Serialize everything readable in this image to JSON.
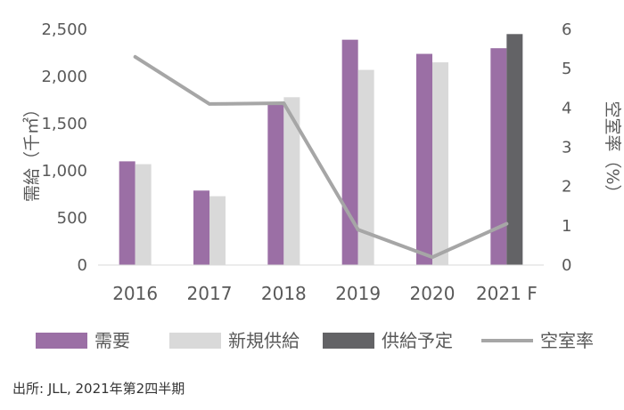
{
  "chart_data": {
    "type": "bar",
    "categories": [
      "2016",
      "2017",
      "2018",
      "2019",
      "2020",
      "2021 F"
    ],
    "series": [
      {
        "name": "需要",
        "type": "bar",
        "axis": "left",
        "color": "#9B6FA5",
        "values": [
          1100,
          790,
          1720,
          2390,
          2240,
          2300
        ]
      },
      {
        "name": "新規供給",
        "type": "bar",
        "axis": "left",
        "color": "#D9D9D9",
        "values": [
          1070,
          730,
          1780,
          2070,
          2150,
          null
        ]
      },
      {
        "name": "供給予定",
        "type": "bar",
        "axis": "left",
        "color": "#636366",
        "values": [
          null,
          null,
          null,
          null,
          null,
          2450
        ]
      },
      {
        "name": "空室率",
        "type": "line",
        "axis": "right",
        "color": "#A6A6A6",
        "values": [
          5.3,
          4.1,
          4.12,
          0.9,
          0.2,
          1.05
        ]
      }
    ],
    "ylabel": "需給（千㎡）",
    "y2label": "空室率（%）",
    "ylim": [
      0,
      2500
    ],
    "y2lim": [
      0,
      6
    ],
    "yticks": [
      "0",
      "500",
      "1,000",
      "1,500",
      "2,000",
      "2,500"
    ],
    "y2ticks": [
      "0",
      "1",
      "2",
      "3",
      "4",
      "5",
      "6"
    ],
    "grid": false,
    "legend_position": "bottom"
  },
  "source": "出所: JLL, 2021年第2四半期"
}
